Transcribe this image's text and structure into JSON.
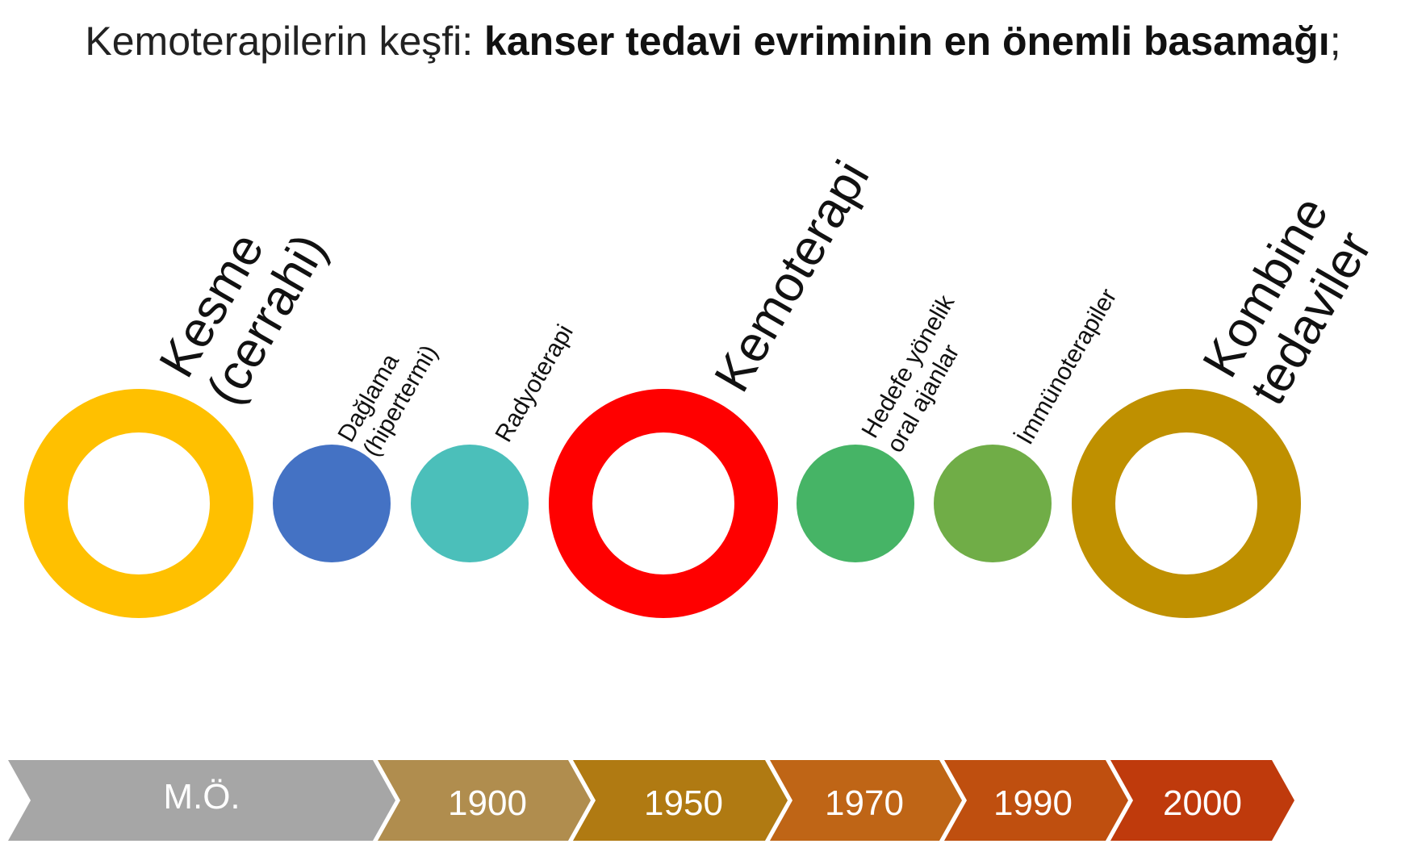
{
  "title": {
    "prefix": "Kemoterapilerin keşfi: ",
    "emphasis": "kanser tedavi evriminin en önemli basamağı",
    "suffix": ";"
  },
  "milestones": [
    {
      "line1": "Kesme",
      "line2": "(cerrahi)",
      "color": "#FFC000",
      "style": "ring"
    },
    {
      "line1": "Dağlama",
      "line2": "(hipertermi)",
      "color": "#4472C4",
      "style": "dot"
    },
    {
      "line1": "Radyoterapi",
      "line2": "",
      "color": "#4BBFBA",
      "style": "dot"
    },
    {
      "line1": "Kemoterapi",
      "line2": "",
      "color": "#FF0000",
      "style": "ring"
    },
    {
      "line1": "Hedefe yönelik",
      "line2": "oral ajanlar",
      "color": "#46B466",
      "style": "dot"
    },
    {
      "line1": "İmmünoterapiler",
      "line2": "",
      "color": "#70AD47",
      "style": "dot"
    },
    {
      "line1": "Kombine",
      "line2": "tedaviler",
      "color": "#BF9000",
      "style": "ring"
    }
  ],
  "timeline": [
    {
      "label": "M.Ö.",
      "color": "#A6A6A6"
    },
    {
      "label": "1900",
      "color": "#B08D4E"
    },
    {
      "label": "1950",
      "color": "#B07A12"
    },
    {
      "label": "1970",
      "color": "#BF6516"
    },
    {
      "label": "1990",
      "color": "#BF4F0F"
    },
    {
      "label": "2000",
      "color": "#BF3A0C"
    }
  ]
}
